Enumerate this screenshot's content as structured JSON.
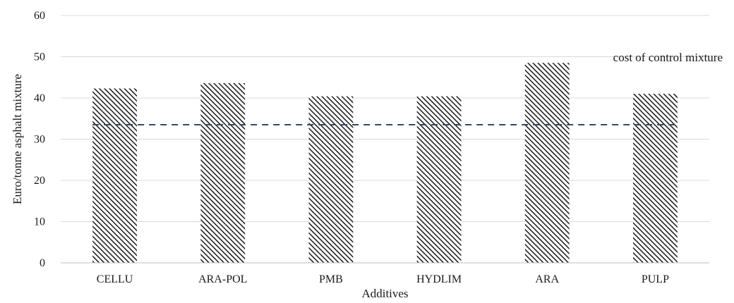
{
  "chart_data": {
    "type": "bar",
    "categories": [
      "CELLU",
      "ARA-POL",
      "PMB",
      "HYDLIM",
      "ARA",
      "PULP"
    ],
    "values": [
      42.3,
      43.6,
      40.4,
      40.4,
      48.5,
      41.0
    ],
    "reference_line": {
      "value": 33.5,
      "label": "cost of control mixture",
      "style": "dashed"
    },
    "xlabel": "Additives",
    "ylabel": "Euro/tonne asphalt mixture",
    "ylim": [
      0,
      60
    ],
    "yticks": [
      0,
      10,
      20,
      30,
      40,
      50,
      60
    ],
    "grid": "horizontal",
    "colors": {
      "bar_hatch": "#1a1a1a",
      "reference_line": "#2f4a6b",
      "grid": "#d9d9d9"
    }
  }
}
